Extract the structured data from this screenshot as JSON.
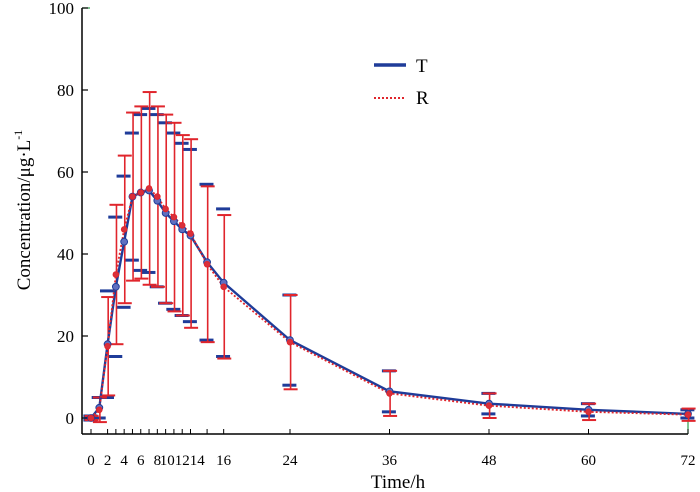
{
  "chart_data": {
    "type": "line",
    "title": "",
    "xlabel": "Time/h",
    "ylabel_main": "Concentration/μg·L",
    "ylabel_sup": "-1",
    "ylim": [
      0,
      100
    ],
    "xlim": [
      0,
      72
    ],
    "yticks": [
      0,
      20,
      40,
      60,
      80,
      100
    ],
    "yticks_labels": [
      "0",
      "20",
      "40",
      "60",
      "80",
      "100"
    ],
    "xticks": [
      0,
      2,
      3,
      4,
      5,
      6,
      7,
      8,
      9,
      10,
      11,
      12,
      14,
      16,
      24,
      36,
      48,
      60,
      72
    ],
    "xtick_labels": [
      {
        "x": 0,
        "text": "0"
      },
      {
        "x": 2,
        "text": "2"
      },
      {
        "x": 4,
        "text": "4"
      },
      {
        "x": 6,
        "text": "6"
      },
      {
        "x": 8,
        "text": "8"
      },
      {
        "x": 11,
        "text": "101214"
      },
      {
        "x": 16,
        "text": "16"
      },
      {
        "x": 24,
        "text": "24"
      },
      {
        "x": 36,
        "text": "36"
      },
      {
        "x": 48,
        "text": "48"
      },
      {
        "x": 60,
        "text": "60"
      },
      {
        "x": 72,
        "text": "72"
      }
    ],
    "legend_position": "top-center",
    "series": [
      {
        "name": "T",
        "color": "#1f3c99",
        "style": "solid",
        "x": [
          0,
          1,
          2,
          3,
          4,
          5,
          6,
          7,
          8,
          9,
          10,
          11,
          12,
          14,
          16,
          24,
          36,
          48,
          60,
          72
        ],
        "y": [
          0,
          2.5,
          18,
          32,
          43,
          54,
          55,
          55.5,
          53,
          50,
          48,
          46,
          44.5,
          38,
          33,
          19,
          6.5,
          3.5,
          2,
          1
        ],
        "sd": [
          0.5,
          2.5,
          13,
          17,
          16,
          15.5,
          19,
          20,
          21,
          22,
          21.5,
          21,
          21,
          19,
          18,
          11,
          5,
          2.5,
          1.5,
          1
        ]
      },
      {
        "name": "R",
        "color": "#e0252c",
        "style": "dotted",
        "x": [
          0,
          1,
          2,
          3,
          4,
          5,
          6,
          7,
          8,
          9,
          10,
          11,
          12,
          14,
          16,
          24,
          36,
          48,
          60,
          72
        ],
        "y": [
          0,
          2,
          17.5,
          35,
          46,
          54,
          55,
          56,
          54,
          51,
          49,
          47,
          45,
          37.5,
          32,
          18.5,
          6,
          3,
          1.5,
          0.8
        ],
        "sd": [
          0.5,
          3,
          12,
          17,
          18,
          20.5,
          21,
          23.5,
          22,
          23,
          23,
          22,
          23,
          19,
          17.5,
          11.5,
          5.5,
          3,
          2,
          1.5
        ]
      }
    ]
  }
}
